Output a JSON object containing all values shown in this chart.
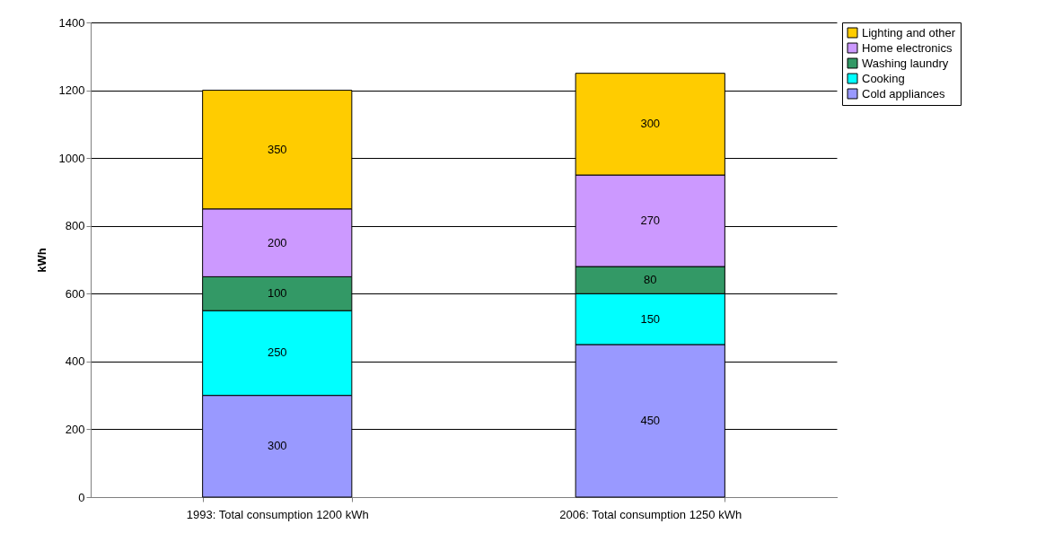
{
  "chart_data": {
    "type": "bar",
    "ylabel": "kWh",
    "stacked": true,
    "data_labels": true,
    "grid": "y",
    "legend": "right",
    "categories": [
      "1993: Total consumption 1200 kWh",
      "2006: Total consumption 1250 kWh"
    ],
    "series": [
      {
        "name": "Cold appliances",
        "color": "#9999ff",
        "values": [
          300,
          450
        ]
      },
      {
        "name": "Cooking",
        "color": "#00ffff",
        "values": [
          250,
          150
        ]
      },
      {
        "name": "Washing laundry",
        "color": "#339966",
        "values": [
          100,
          80
        ]
      },
      {
        "name": "Home electronics",
        "color": "#cc99ff",
        "values": [
          200,
          270
        ]
      },
      {
        "name": "Lighting and other",
        "color": "#ffcc00",
        "values": [
          350,
          300
        ]
      }
    ],
    "ylim": [
      0,
      1400
    ],
    "yticks": [
      0,
      200,
      400,
      600,
      800,
      1000,
      1200,
      1400
    ]
  }
}
